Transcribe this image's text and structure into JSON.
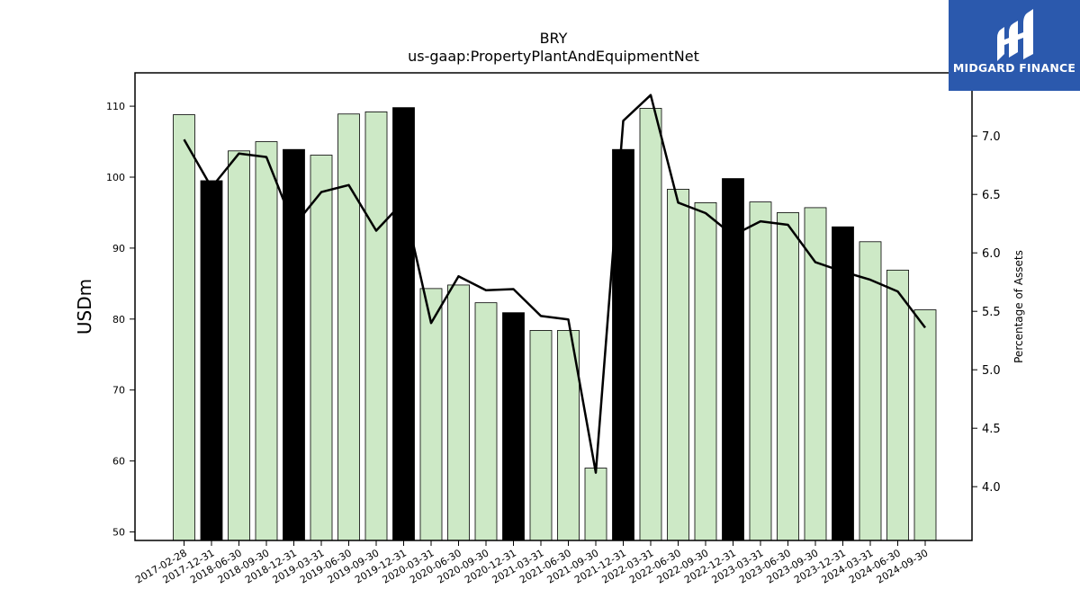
{
  "chart_data": {
    "type": "bar",
    "title": "BRY",
    "subtitle": "us-gaap:PropertyPlantAndEquipmentNet",
    "ylabel": "USDm",
    "y2label": "Percentage of Assets",
    "categories": [
      "2017-02-28",
      "2017-12-31",
      "2018-06-30",
      "2018-09-30",
      "2018-12-31",
      "2019-03-31",
      "2019-06-30",
      "2019-09-30",
      "2019-12-31",
      "2020-03-31",
      "2020-06-30",
      "2020-09-30",
      "2020-12-31",
      "2021-03-31",
      "2021-06-30",
      "2021-09-30",
      "2021-12-31",
      "2022-03-31",
      "2022-06-30",
      "2022-09-30",
      "2022-12-31",
      "2023-03-31",
      "2023-06-30",
      "2023-09-30",
      "2023-12-31",
      "2024-03-31",
      "2024-06-30",
      "2024-09-30"
    ],
    "series": [
      {
        "axis": "left",
        "kind": "bar",
        "values": [
          108.8,
          99.5,
          103.7,
          105.0,
          103.9,
          103.1,
          108.9,
          109.2,
          109.8,
          84.3,
          84.8,
          82.3,
          80.9,
          78.4,
          78.4,
          59.0,
          103.9,
          109.7,
          98.3,
          96.4,
          99.8,
          96.5,
          95.0,
          95.7,
          93.0,
          90.9,
          86.9,
          81.3
        ]
      },
      {
        "axis": "right",
        "kind": "line",
        "values": [
          6.97,
          6.56,
          6.85,
          6.82,
          6.23,
          6.52,
          6.58,
          6.19,
          6.44,
          5.4,
          5.8,
          5.68,
          5.69,
          5.46,
          5.43,
          4.12,
          7.13,
          7.35,
          6.43,
          6.34,
          6.15,
          6.27,
          6.24,
          5.92,
          5.84,
          5.77,
          5.67,
          5.36
        ]
      }
    ],
    "highlight_indices": [
      1,
      4,
      8,
      12,
      16,
      20,
      24
    ],
    "colors": {
      "bar": "#cde9c6",
      "highlight_bar": "#000000",
      "line": "#000000"
    },
    "ylim": [
      48.8,
      114.7
    ],
    "y_ticks": [
      50,
      60,
      70,
      80,
      90,
      100,
      110
    ],
    "y2lim": [
      3.54,
      7.54
    ],
    "y2_ticks": [
      4.0,
      4.5,
      5.0,
      5.5,
      6.0,
      6.5,
      7.0
    ],
    "grid": false,
    "legend": "none"
  },
  "logo": {
    "text": "MIDGARD FINANCE",
    "color": "#2b59ad"
  }
}
